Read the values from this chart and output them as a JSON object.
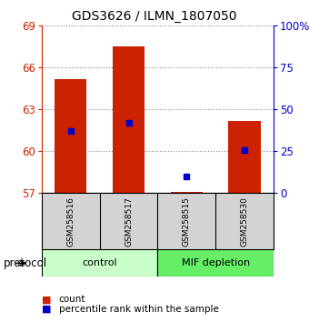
{
  "title": "GDS3626 / ILMN_1807050",
  "samples": [
    "GSM258516",
    "GSM258517",
    "GSM258515",
    "GSM258530"
  ],
  "bar_tops": [
    65.2,
    67.5,
    57.12,
    62.2
  ],
  "bar_bottom": 57.0,
  "percentile_pct": [
    37,
    42,
    10,
    26
  ],
  "ylim_left": [
    57,
    69
  ],
  "ylim_right": [
    0,
    100
  ],
  "yticks_left": [
    57,
    60,
    63,
    66,
    69
  ],
  "yticks_right": [
    0,
    25,
    50,
    75,
    100
  ],
  "bar_color": "#cc2200",
  "dot_color": "#0000cc",
  "control_color": "#c8ffc8",
  "mif_color": "#66ee66",
  "group_label": "protocol",
  "legend_count_label": "count",
  "legend_pct_label": "percentile rank within the sample",
  "title_fontsize": 10,
  "tick_fontsize": 8.5,
  "sample_fontsize": 6.5,
  "group_fontsize": 8
}
